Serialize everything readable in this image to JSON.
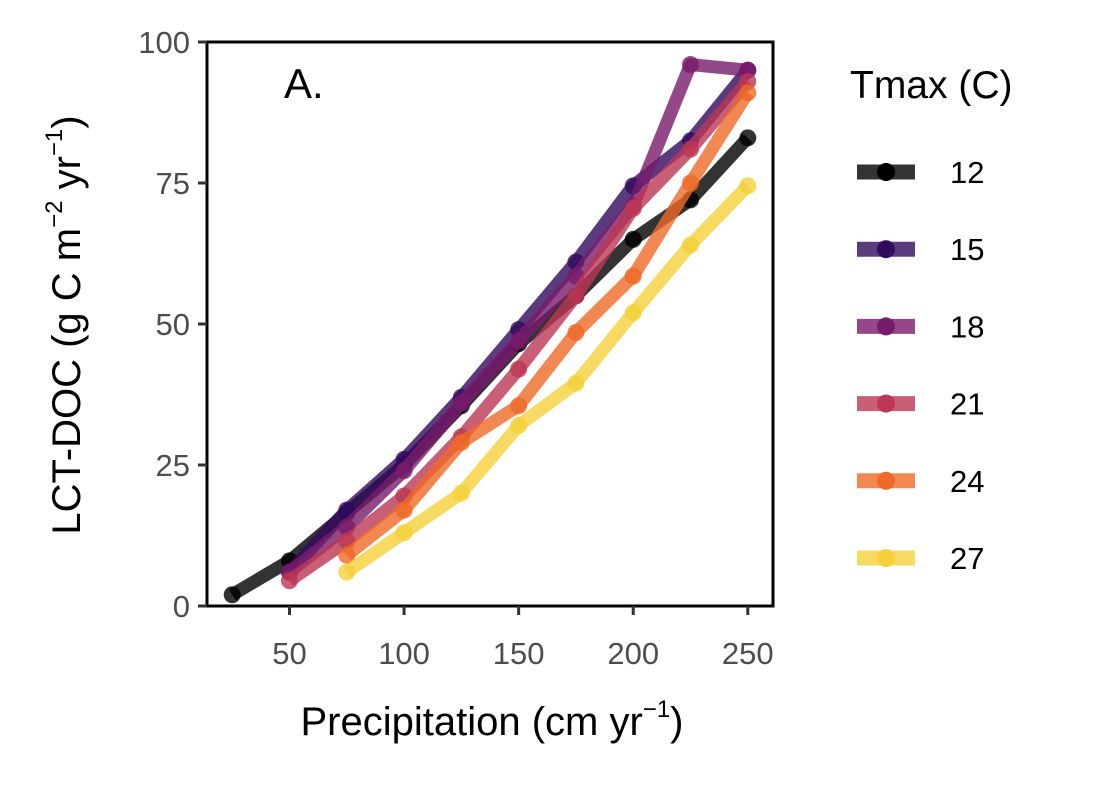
{
  "chart_data": {
    "type": "line",
    "panel_label": "A.",
    "xlabel": "Precipitation (cm yr",
    "xlabel_sup": "−1",
    "xlabel_end": ")",
    "ylabel": "LCT-DOC (g C m",
    "ylabel_sup1": "−2",
    "ylabel_mid": " yr",
    "ylabel_sup2": "−1",
    "ylabel_end": ")",
    "xlim": [
      14,
      261
    ],
    "ylim": [
      0,
      100
    ],
    "xticks": [
      50,
      100,
      150,
      200,
      250
    ],
    "yticks": [
      0,
      25,
      50,
      75,
      100
    ],
    "grid": false,
    "legend_position": "right",
    "legend_title": "Tmax (C)",
    "series": [
      {
        "name": "12",
        "color": "#000000",
        "x": [
          25,
          50,
          75,
          100,
          125,
          150,
          175,
          200,
          225,
          250
        ],
        "y": [
          2,
          8,
          16.5,
          25,
          35.5,
          46.5,
          55,
          65,
          72,
          83
        ]
      },
      {
        "name": "15",
        "color": "#320a5e",
        "x": [
          50,
          75,
          100,
          125,
          150,
          175,
          200,
          225,
          250
        ],
        "y": [
          6,
          17,
          26,
          37,
          49,
          61,
          74.5,
          82.5,
          95
        ]
      },
      {
        "name": "18",
        "color": "#781b6c",
        "x": [
          50,
          75,
          100,
          125,
          150,
          175,
          200,
          225,
          250
        ],
        "y": [
          6,
          14,
          24,
          36,
          47,
          58.5,
          71,
          96,
          95
        ]
      },
      {
        "name": "21",
        "color": "#bb3754",
        "x": [
          50,
          75,
          100,
          125,
          150,
          175,
          200,
          225,
          250
        ],
        "y": [
          4.5,
          11.5,
          19.5,
          30,
          42,
          55,
          70.5,
          81,
          93
        ]
      },
      {
        "name": "24",
        "color": "#ed6925",
        "x": [
          75,
          100,
          125,
          150,
          175,
          200,
          225,
          250
        ],
        "y": [
          9,
          17,
          29,
          35.5,
          48.5,
          58.5,
          75,
          91
        ]
      },
      {
        "name": "27",
        "color": "#f4d13a",
        "x": [
          75,
          100,
          125,
          150,
          175,
          200,
          225,
          250
        ],
        "y": [
          6,
          13,
          20,
          32,
          39.5,
          52,
          64,
          74.5
        ]
      }
    ]
  }
}
